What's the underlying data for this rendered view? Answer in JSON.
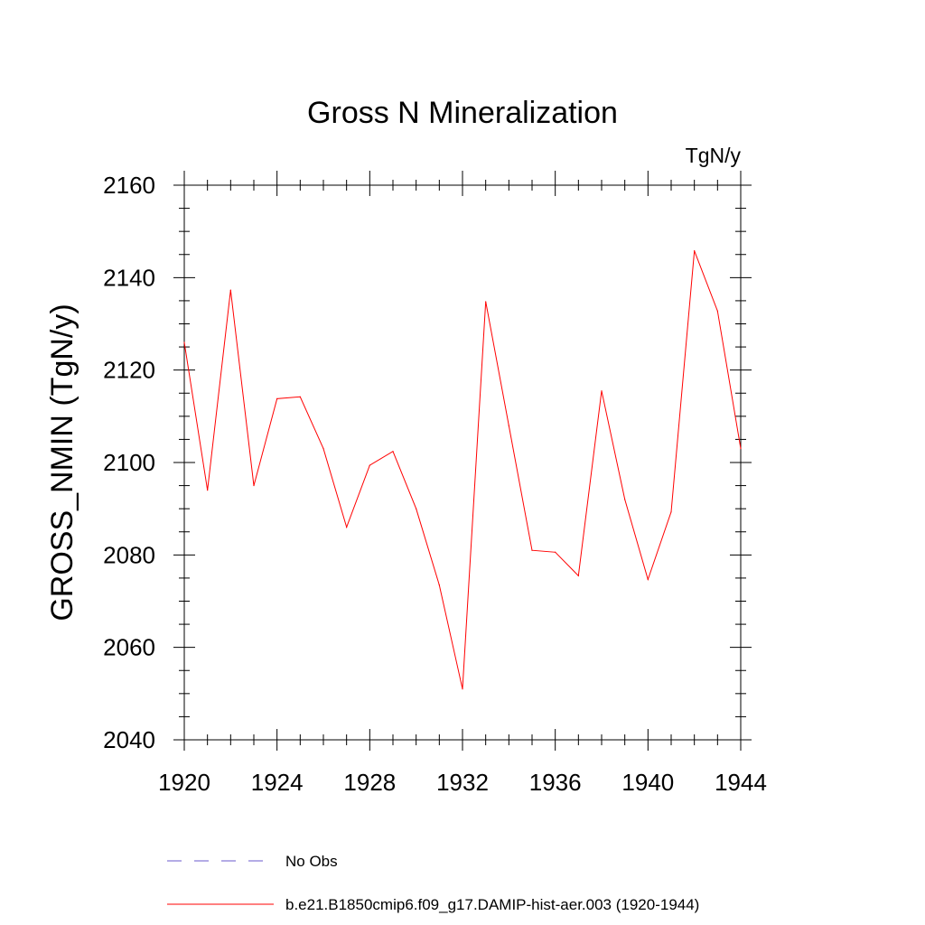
{
  "chart_data": {
    "type": "line",
    "title": "Gross N Mineralization",
    "units_label": "TgN/y",
    "xlabel": "",
    "ylabel": "GROSS_NMIN  (TgN/y)",
    "xlim": [
      1920,
      1944
    ],
    "ylim": [
      2040,
      2160
    ],
    "xticks": [
      1920,
      1924,
      1928,
      1932,
      1936,
      1940,
      1944
    ],
    "yticks": [
      2040,
      2060,
      2080,
      2100,
      2120,
      2140,
      2160
    ],
    "xtick_labels": [
      "1920",
      "1924",
      "1928",
      "1932",
      "1936",
      "1940",
      "1944"
    ],
    "ytick_labels": [
      "2040",
      "2060",
      "2080",
      "2100",
      "2120",
      "2140",
      "2160"
    ],
    "grid": false,
    "legend_position": "bottom",
    "series": [
      {
        "name": "b.e21.B1850cmip6.f09_g17.DAMIP-hist-aer.003 (1920-1944)",
        "color": "#ff0000",
        "style": "solid",
        "x": [
          1920,
          1921,
          1922,
          1923,
          1924,
          1925,
          1926,
          1927,
          1928,
          1929,
          1930,
          1931,
          1932,
          1933,
          1934,
          1935,
          1936,
          1937,
          1938,
          1939,
          1940,
          1941,
          1942,
          1943,
          1944
        ],
        "y": [
          2126,
          2094,
          2137.3,
          2095,
          2113.8,
          2114.2,
          2103,
          2086,
          2099.4,
          2102.4,
          2090,
          2073.5,
          2051,
          2134.8,
          2108,
          2081,
          2080.6,
          2075.5,
          2115.5,
          2092,
          2074.7,
          2089.3,
          2145.8,
          2132.8,
          2103
        ]
      }
    ],
    "legend": [
      {
        "label": "No Obs",
        "color": "#6a5acd",
        "style": "dashed"
      },
      {
        "label": "b.e21.B1850cmip6.f09_g17.DAMIP-hist-aer.003 (1920-1944)",
        "color": "#ff0000",
        "style": "solid"
      }
    ]
  }
}
